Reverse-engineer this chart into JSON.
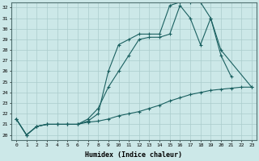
{
  "xlabel": "Humidex (Indice chaleur)",
  "background_color": "#cce8e8",
  "grid_color": "#aacccc",
  "line_color": "#1a6060",
  "xlim": [
    -0.5,
    23.5
  ],
  "ylim": [
    19.5,
    32.5
  ],
  "xticks": [
    0,
    1,
    2,
    3,
    4,
    5,
    6,
    7,
    8,
    9,
    10,
    11,
    12,
    13,
    14,
    15,
    16,
    17,
    18,
    19,
    20,
    21,
    22,
    23
  ],
  "yticks": [
    20,
    21,
    22,
    23,
    24,
    25,
    26,
    27,
    28,
    29,
    30,
    31,
    32
  ],
  "series": [
    {
      "x": [
        0,
        1,
        2,
        3,
        4,
        5,
        6,
        7,
        8,
        9,
        10,
        11,
        12,
        13,
        14,
        15,
        16,
        17,
        18,
        19,
        20,
        21,
        22,
        23
      ],
      "y": [
        21.5,
        20.0,
        20.8,
        21.0,
        21.0,
        21.0,
        21.0,
        21.2,
        21.3,
        21.5,
        21.8,
        22.0,
        22.2,
        22.5,
        22.8,
        23.2,
        23.5,
        23.8,
        24.0,
        24.2,
        24.3,
        24.4,
        24.5,
        24.5
      ]
    },
    {
      "x": [
        0,
        1,
        2,
        3,
        4,
        5,
        6,
        7,
        8,
        9,
        10,
        11,
        12,
        13,
        14,
        15,
        16,
        17,
        18,
        19,
        20,
        21
      ],
      "y": [
        21.5,
        20.0,
        20.8,
        21.0,
        21.0,
        21.0,
        21.0,
        21.5,
        22.5,
        24.5,
        26.0,
        27.5,
        29.0,
        29.2,
        29.2,
        29.5,
        32.2,
        31.0,
        28.5,
        31.0,
        27.5,
        25.5
      ]
    },
    {
      "x": [
        0,
        1,
        2,
        3,
        4,
        5,
        6,
        7,
        8,
        9,
        10,
        11,
        12,
        13,
        14,
        15,
        16,
        17,
        18,
        19,
        20,
        23
      ],
      "y": [
        21.5,
        20.0,
        20.8,
        21.0,
        21.0,
        21.0,
        21.0,
        21.3,
        22.0,
        26.0,
        28.5,
        29.0,
        29.5,
        29.5,
        29.5,
        32.2,
        32.5,
        32.5,
        32.5,
        31.0,
        28.0,
        24.5
      ]
    }
  ]
}
